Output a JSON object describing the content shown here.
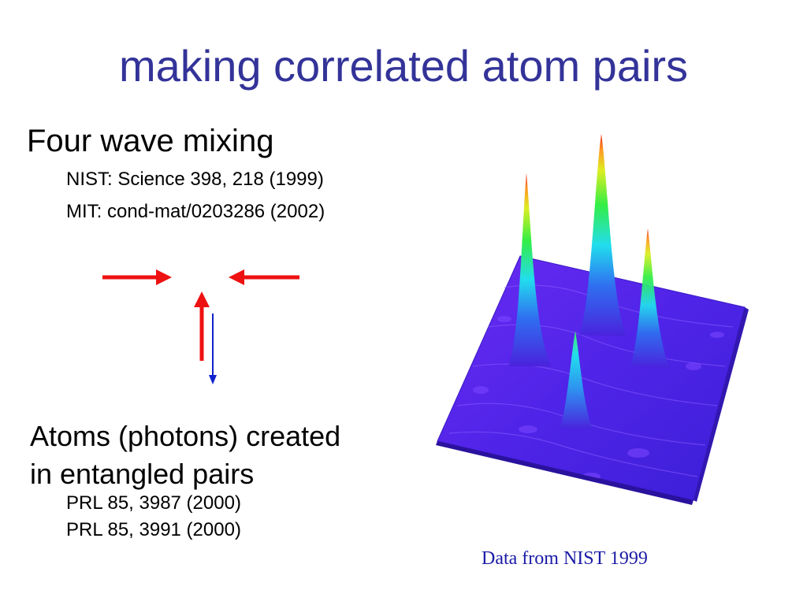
{
  "slide": {
    "title": "making correlated atom pairs",
    "heading": "Four wave mixing",
    "references_top": [
      "NIST: Science 398, 218 (1999)",
      "MIT: cond-mat/0203286 (2002)"
    ],
    "body_lines": [
      "Atoms (photons) created",
      "in entangled pairs"
    ],
    "references_bottom": [
      "PRL 85, 3987 (2000)",
      "PRL 85, 3991 (2000)"
    ],
    "caption": "Data from NIST 1999"
  },
  "colors": {
    "title": "#333399",
    "arrow_red": "#ee1111",
    "arrow_blue": "#1122cc",
    "caption": "#1a1aa6",
    "surface_base": "#5522ee"
  }
}
